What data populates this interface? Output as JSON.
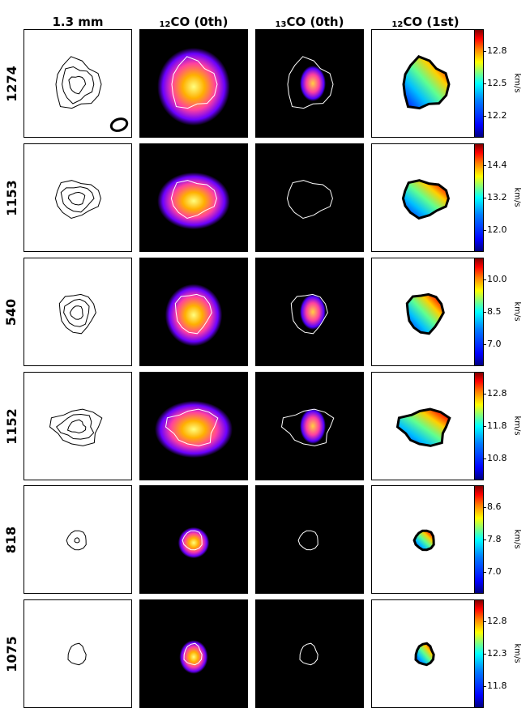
{
  "columns": [
    "1.3 mm",
    "CO (0th)",
    "CO (0th)",
    "CO (1st)"
  ],
  "column_superscripts": [
    "",
    "12",
    "13",
    "12"
  ],
  "rows": [
    {
      "source": "1274",
      "cbar_ticks": [
        "12.8",
        "12.5",
        "12.2"
      ],
      "unit": "km/s"
    },
    {
      "source": "1153",
      "cbar_ticks": [
        "14.4",
        "13.2",
        "12.0"
      ],
      "unit": "km/s"
    },
    {
      "source": "540",
      "cbar_ticks": [
        "10.0",
        "8.5",
        "7.0"
      ],
      "unit": "km/s"
    },
    {
      "source": "1152",
      "cbar_ticks": [
        "12.8",
        "11.8",
        "10.8"
      ],
      "unit": "km/s"
    },
    {
      "source": "818",
      "cbar_ticks": [
        "8.6",
        "7.8",
        "7.0"
      ],
      "unit": "km/s"
    },
    {
      "source": "1075",
      "cbar_ticks": [
        "12.8",
        "12.3",
        "11.8"
      ],
      "unit": "km/s"
    }
  ],
  "colors": {
    "colorbar": "jet",
    "moment0": "gnuplot2",
    "contour": "#000000"
  }
}
